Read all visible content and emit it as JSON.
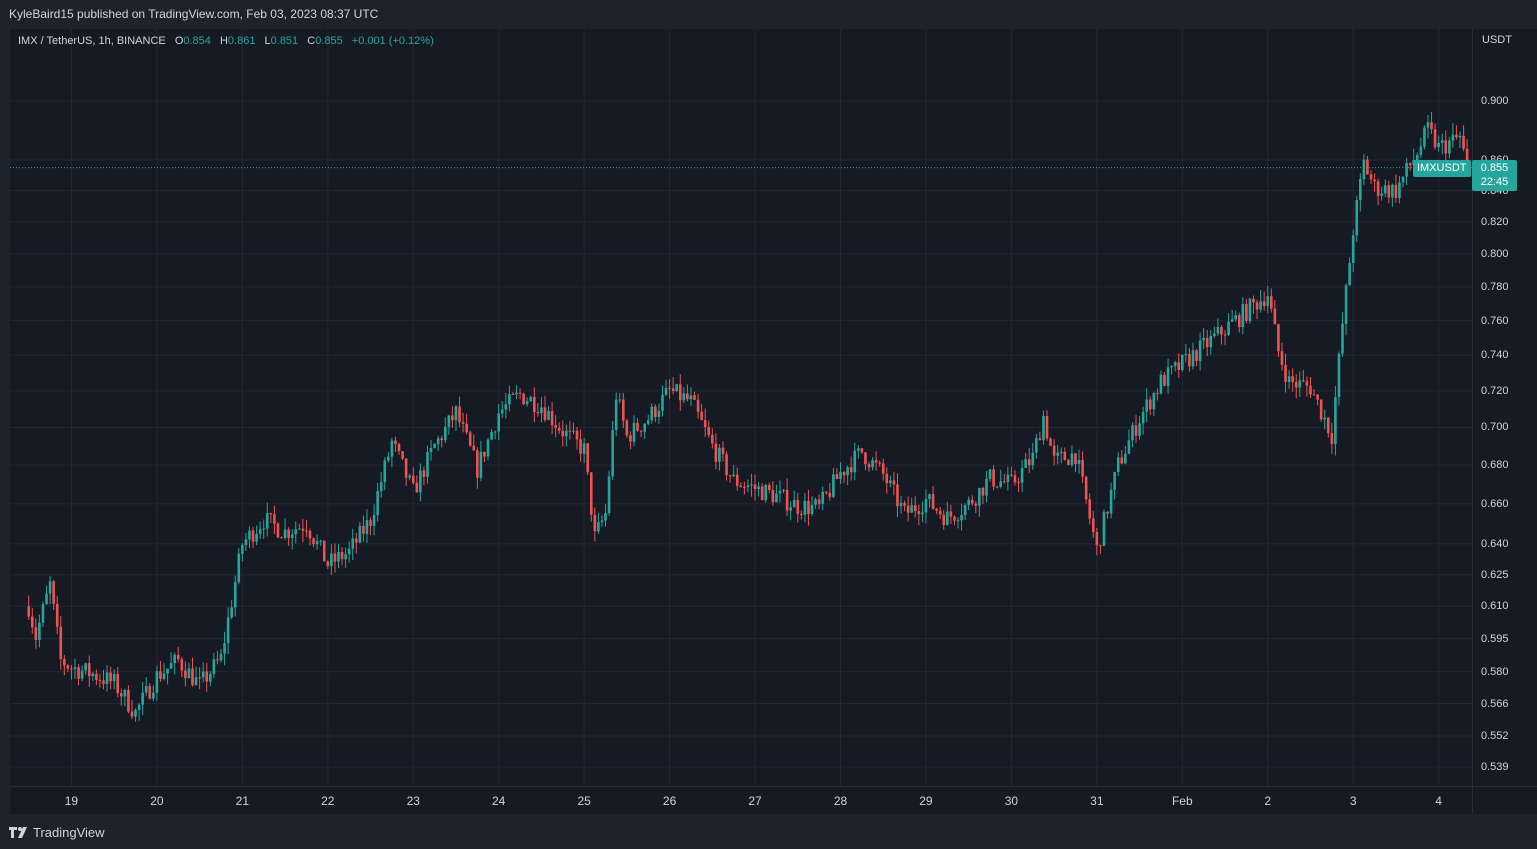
{
  "header": {
    "publisher_line": "KyleBaird15 published on TradingView.com, Feb 03, 2023 08:37 UTC"
  },
  "legend": {
    "symbol": "IMX / TetherUS, 1h, BINANCE",
    "o_label": "O",
    "o_value": "0.854",
    "h_label": "H",
    "h_value": "0.861",
    "l_label": "L",
    "l_value": "0.851",
    "c_label": "C",
    "c_value": "0.855",
    "change": "+0.001 (+0.12%)"
  },
  "price_axis": {
    "unit": "USDT",
    "ticks": [
      "0.900",
      "0.860",
      "0.840",
      "0.820",
      "0.800",
      "0.780",
      "0.760",
      "0.740",
      "0.720",
      "0.700",
      "0.680",
      "0.660",
      "0.640",
      "0.625",
      "0.610",
      "0.595",
      "0.580",
      "0.566",
      "0.552",
      "0.539"
    ]
  },
  "time_axis": {
    "ticks": [
      "19",
      "20",
      "21",
      "22",
      "23",
      "24",
      "25",
      "26",
      "27",
      "28",
      "29",
      "30",
      "31",
      "Feb",
      "2",
      "3",
      "4"
    ]
  },
  "last_price": {
    "symbol_label": "IMXUSDT",
    "price": "0.855",
    "countdown": "22:45"
  },
  "footer": {
    "brand": "TradingView"
  },
  "colors": {
    "up": "#26a69a",
    "down": "#ef5350",
    "background": "#161a25",
    "grid": "#232733"
  },
  "chart_data": {
    "type": "candlestick",
    "symbol": "IMX / TetherUS",
    "interval": "1h",
    "exchange": "BINANCE",
    "y_scale": "log",
    "ylim": [
      0.528,
      0.922
    ],
    "grid": true,
    "dates": [
      "Jan 19",
      "Jan 20",
      "Jan 21",
      "Jan 22",
      "Jan 23",
      "Jan 24",
      "Jan 25",
      "Jan 26",
      "Jan 27",
      "Jan 28",
      "Jan 29",
      "Jan 30",
      "Jan 31",
      "Feb 1",
      "Feb 2",
      "Feb 3"
    ],
    "close_path": [
      {
        "x": "Jan 18 12:00",
        "y": 0.61
      },
      {
        "x": "Jan 18 14:00",
        "y": 0.596
      },
      {
        "x": "Jan 18 18:00",
        "y": 0.62
      },
      {
        "x": "Jan 18 21:00",
        "y": 0.585
      },
      {
        "x": "Jan 19 00:00",
        "y": 0.582
      },
      {
        "x": "Jan 19 06:00",
        "y": 0.579
      },
      {
        "x": "Jan 19 12:00",
        "y": 0.575
      },
      {
        "x": "Jan 19 18:00",
        "y": 0.562
      },
      {
        "x": "Jan 20 00:00",
        "y": 0.578
      },
      {
        "x": "Jan 20 06:00",
        "y": 0.585
      },
      {
        "x": "Jan 20 12:00",
        "y": 0.574
      },
      {
        "x": "Jan 20 18:00",
        "y": 0.586
      },
      {
        "x": "Jan 21 00:00",
        "y": 0.64
      },
      {
        "x": "Jan 21 06:00",
        "y": 0.652
      },
      {
        "x": "Jan 21 12:00",
        "y": 0.646
      },
      {
        "x": "Jan 21 18:00",
        "y": 0.65
      },
      {
        "x": "Jan 22 00:00",
        "y": 0.63
      },
      {
        "x": "Jan 22 06:00",
        "y": 0.636
      },
      {
        "x": "Jan 22 12:00",
        "y": 0.652
      },
      {
        "x": "Jan 22 18:00",
        "y": 0.692
      },
      {
        "x": "Jan 23 00:00",
        "y": 0.666
      },
      {
        "x": "Jan 23 06:00",
        "y": 0.69
      },
      {
        "x": "Jan 23 12:00",
        "y": 0.708
      },
      {
        "x": "Jan 23 18:00",
        "y": 0.678
      },
      {
        "x": "Jan 24 00:00",
        "y": 0.708
      },
      {
        "x": "Jan 24 06:00",
        "y": 0.718
      },
      {
        "x": "Jan 24 12:00",
        "y": 0.712
      },
      {
        "x": "Jan 24 18:00",
        "y": 0.698
      },
      {
        "x": "Jan 25 00:00",
        "y": 0.688
      },
      {
        "x": "Jan 25 03:00",
        "y": 0.643
      },
      {
        "x": "Jan 25 06:00",
        "y": 0.655
      },
      {
        "x": "Jan 25 09:00",
        "y": 0.718
      },
      {
        "x": "Jan 25 12:00",
        "y": 0.695
      },
      {
        "x": "Jan 25 18:00",
        "y": 0.705
      },
      {
        "x": "Jan 26 00:00",
        "y": 0.72
      },
      {
        "x": "Jan 26 06:00",
        "y": 0.714
      },
      {
        "x": "Jan 26 12:00",
        "y": 0.69
      },
      {
        "x": "Jan 26 18:00",
        "y": 0.672
      },
      {
        "x": "Jan 27 00:00",
        "y": 0.668
      },
      {
        "x": "Jan 27 06:00",
        "y": 0.664
      },
      {
        "x": "Jan 27 12:00",
        "y": 0.659
      },
      {
        "x": "Jan 27 18:00",
        "y": 0.658
      },
      {
        "x": "Jan 28 00:00",
        "y": 0.676
      },
      {
        "x": "Jan 28 06:00",
        "y": 0.687
      },
      {
        "x": "Jan 28 12:00",
        "y": 0.675
      },
      {
        "x": "Jan 28 18:00",
        "y": 0.655
      },
      {
        "x": "Jan 29 00:00",
        "y": 0.662
      },
      {
        "x": "Jan 29 06:00",
        "y": 0.653
      },
      {
        "x": "Jan 29 12:00",
        "y": 0.66
      },
      {
        "x": "Jan 29 18:00",
        "y": 0.673
      },
      {
        "x": "Jan 30 00:00",
        "y": 0.67
      },
      {
        "x": "Jan 30 06:00",
        "y": 0.684
      },
      {
        "x": "Jan 30 09:00",
        "y": 0.706
      },
      {
        "x": "Jan 30 12:00",
        "y": 0.682
      },
      {
        "x": "Jan 30 18:00",
        "y": 0.686
      },
      {
        "x": "Jan 31 00:00",
        "y": 0.637
      },
      {
        "x": "Jan 31 06:00",
        "y": 0.68
      },
      {
        "x": "Jan 31 12:00",
        "y": 0.705
      },
      {
        "x": "Jan 31 18:00",
        "y": 0.725
      },
      {
        "x": "Feb 1 00:00",
        "y": 0.776
      },
      {
        "x": "Feb 1 03:00",
        "y": 0.742
      },
      {
        "x": "Feb 1 06:00",
        "y": 0.725
      },
      {
        "x": "Feb 1 12:00",
        "y": 0.722
      },
      {
        "x": "Feb 1 18:00",
        "y": 0.696
      },
      {
        "x": "Feb 1 21:00",
        "y": 0.758
      },
      {
        "x": "Feb 2 00:00",
        "y": 0.815
      },
      {
        "x": "Feb 2 03:00",
        "y": 0.858
      },
      {
        "x": "Feb 2 06:00",
        "y": 0.842
      },
      {
        "x": "Feb 2 12:00",
        "y": 0.84
      },
      {
        "x": "Feb 2 18:00",
        "y": 0.865
      },
      {
        "x": "Feb 2 21:00",
        "y": 0.88
      },
      {
        "x": "Feb 3 00:00",
        "y": 0.868
      },
      {
        "x": "Feb 3 06:00",
        "y": 0.875
      },
      {
        "x": "Feb 3 08:00",
        "y": 0.855
      }
    ],
    "last": {
      "open": 0.854,
      "high": 0.861,
      "low": 0.851,
      "close": 0.855
    }
  }
}
